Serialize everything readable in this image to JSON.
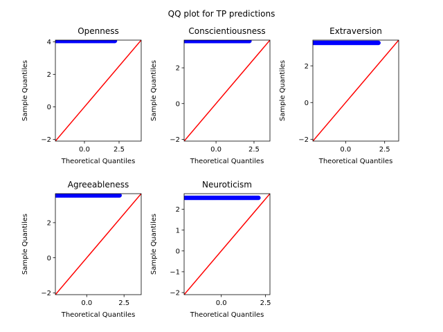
{
  "figure": {
    "title": "QQ plot for TP predictions",
    "colors": {
      "points": "#0000ff",
      "reference_line": "#ff0000",
      "axes": "#000000",
      "background": "#ffffff"
    }
  },
  "chart_data": [
    {
      "type": "scatter",
      "title": "Openness",
      "xlabel": "Theoretical Quantiles",
      "ylabel": "Sample Quantiles",
      "xlim": [
        -2.1,
        4.1
      ],
      "ylim": [
        -2.1,
        4.1
      ],
      "xticks": [
        0.0,
        2.5
      ],
      "xtick_labels": [
        "0.0",
        "2.5"
      ],
      "yticks": [
        -2,
        0,
        2,
        4
      ],
      "ytick_labels": [
        "−2",
        "0",
        "2",
        "4"
      ],
      "sample_quantile_value": 4.05,
      "theoretical_range": [
        -2.05,
        2.2
      ],
      "reference_line": "45-degree (y = x)"
    },
    {
      "type": "scatter",
      "title": "Conscientiousness",
      "xlabel": "Theoretical Quantiles",
      "ylabel": "Sample Quantiles",
      "xlim": [
        -2.1,
        3.55
      ],
      "ylim": [
        -2.1,
        3.55
      ],
      "xticks": [
        0.0,
        2.5
      ],
      "xtick_labels": [
        "0.0",
        "2.5"
      ],
      "yticks": [
        -2,
        0,
        2
      ],
      "ytick_labels": [
        "−2",
        "0",
        "2"
      ],
      "sample_quantile_value": 3.5,
      "theoretical_range": [
        -2.05,
        2.2
      ],
      "reference_line": "45-degree (y = x)"
    },
    {
      "type": "scatter",
      "title": "Extraversion",
      "xlabel": "Theoretical Quantiles",
      "ylabel": "Sample Quantiles",
      "xlim": [
        -2.1,
        3.4
      ],
      "ylim": [
        -2.1,
        3.4
      ],
      "xticks": [
        0.0,
        2.5
      ],
      "xtick_labels": [
        "0.0",
        "2.5"
      ],
      "yticks": [
        -2,
        0,
        2
      ],
      "ytick_labels": [
        "−2",
        "0",
        "2"
      ],
      "sample_quantile_value": 3.25,
      "theoretical_range": [
        -2.05,
        2.1
      ],
      "reference_line": "45-degree (y = x)"
    },
    {
      "type": "scatter",
      "title": "Agreeableness",
      "xlabel": "Theoretical Quantiles",
      "ylabel": "Sample Quantiles",
      "xlim": [
        -2.1,
        3.65
      ],
      "ylim": [
        -2.1,
        3.65
      ],
      "xticks": [
        0.0,
        2.5
      ],
      "xtick_labels": [
        "0.0",
        "2.5"
      ],
      "yticks": [
        -2,
        0,
        2
      ],
      "ytick_labels": [
        "−2",
        "0",
        "2"
      ],
      "sample_quantile_value": 3.55,
      "theoretical_range": [
        -2.05,
        2.2
      ],
      "reference_line": "45-degree (y = x)"
    },
    {
      "type": "scatter",
      "title": "Neuroticism",
      "xlabel": "Theoretical Quantiles",
      "ylabel": "Sample Quantiles",
      "xlim": [
        -2.1,
        2.75
      ],
      "ylim": [
        -2.1,
        2.75
      ],
      "xticks": [
        0.0,
        2.5
      ],
      "xtick_labels": [
        "0.0",
        "2.5"
      ],
      "yticks": [
        -2,
        -1,
        0,
        1,
        2
      ],
      "ytick_labels": [
        "−2",
        "−1",
        "0",
        "1",
        "2"
      ],
      "sample_quantile_value": 2.55,
      "theoretical_range": [
        -2.05,
        2.1
      ],
      "reference_line": "45-degree (y = x)"
    }
  ]
}
